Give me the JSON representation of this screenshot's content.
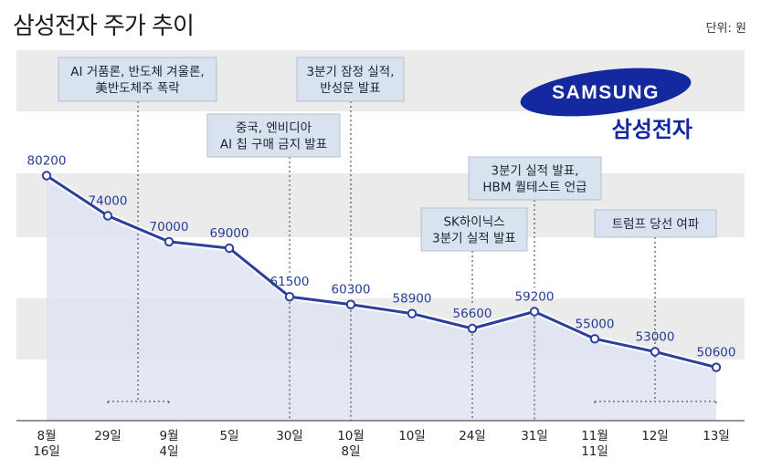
{
  "title": "삼성전자 주가 추이",
  "unit": "단위: 원",
  "logo": {
    "wordmark": "SAMSUNG",
    "korean_name": "삼성전자",
    "color": "#1428a0"
  },
  "colors": {
    "line": "#2b3f9e",
    "area": "#dde3f1",
    "band": "#ebebeb",
    "note_bg": "#d9e2ef"
  },
  "chart_data": {
    "type": "line",
    "title": "삼성전자 주가 추이",
    "ylabel": "단위: 원",
    "x": [
      "8월 16일",
      "29일",
      "9월 4일",
      "5일",
      "30일",
      "10월 8일",
      "10일",
      "24일",
      "31일",
      "11월 11일",
      "12일",
      "13일"
    ],
    "x_labels": [
      [
        "8월",
        "16일"
      ],
      [
        "29일"
      ],
      [
        "9월",
        "4일"
      ],
      [
        "5일"
      ],
      [
        "30일"
      ],
      [
        "10월",
        "8일"
      ],
      [
        "10일"
      ],
      [
        "24일"
      ],
      [
        "31일"
      ],
      [
        "11월",
        "11일"
      ],
      [
        "12일"
      ],
      [
        "13일"
      ]
    ],
    "values": [
      80200,
      74000,
      70000,
      69000,
      61500,
      60300,
      58900,
      56600,
      59200,
      55000,
      53000,
      50600
    ],
    "data_labels": [
      "80200",
      "74000",
      "70000",
      "69000",
      "61500",
      "60300",
      "58900",
      "56600",
      "59200",
      "55000",
      "53000",
      "50600"
    ],
    "grid": false,
    "annotations": [
      {
        "lines": [
          "AI 거품론, 반도체 겨울론,",
          "美반도체주 폭락"
        ],
        "points": [
          1,
          2
        ]
      },
      {
        "lines": [
          "중국, 엔비디아",
          "AI 칩 구매 금지 발표"
        ],
        "points": [
          4
        ]
      },
      {
        "lines": [
          "3분기 잠정 실적,",
          "반성문 발표"
        ],
        "points": [
          5
        ]
      },
      {
        "lines": [
          "SK하이닉스",
          "3분기 실적 발표"
        ],
        "points": [
          7
        ]
      },
      {
        "lines": [
          "3분기 실적 발표,",
          "HBM 퀄테스트 언급"
        ],
        "points": [
          8
        ]
      },
      {
        "lines": [
          "트럼프 당선 여파"
        ],
        "points": [
          9,
          10,
          11
        ]
      }
    ]
  }
}
